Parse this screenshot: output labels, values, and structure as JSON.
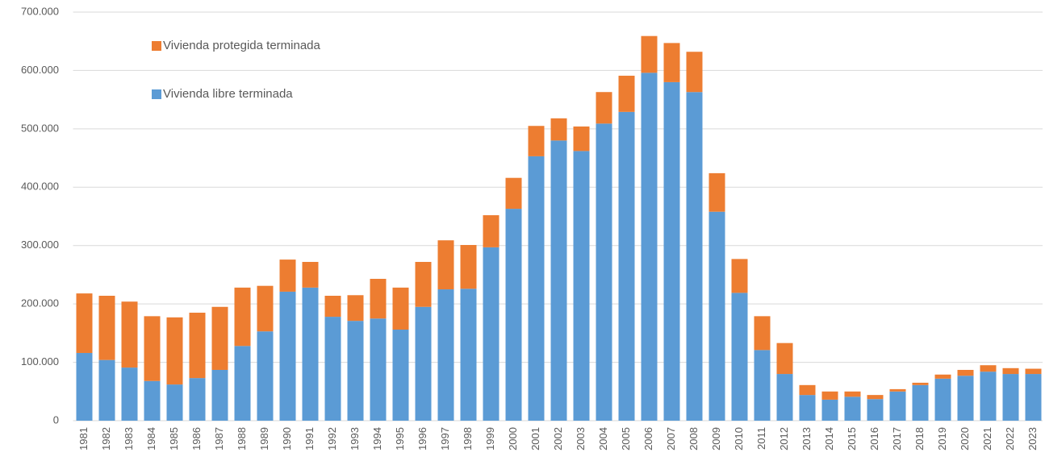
{
  "chart_data": {
    "type": "stacked_bar",
    "categories": [
      "1981",
      "1982",
      "1983",
      "1984",
      "1985",
      "1986",
      "1987",
      "1988",
      "1989",
      "1990",
      "1991",
      "1992",
      "1993",
      "1994",
      "1995",
      "1996",
      "1997",
      "1998",
      "1999",
      "2000",
      "2001",
      "2002",
      "2003",
      "2004",
      "2005",
      "2006",
      "2007",
      "2008",
      "2009",
      "2010",
      "2011",
      "2012",
      "2013",
      "2014",
      "2015",
      "2016",
      "2017",
      "2018",
      "2019",
      "2020",
      "2021",
      "2022",
      "2023"
    ],
    "series": [
      {
        "name": "Vivienda libre terminada",
        "color": "#5b9bd5",
        "values": [
          116000,
          104000,
          91000,
          68000,
          62000,
          73000,
          87000,
          128000,
          153000,
          221000,
          228000,
          178000,
          171000,
          175000,
          156000,
          195000,
          225000,
          226000,
          297000,
          363000,
          453000,
          480000,
          462000,
          509000,
          529000,
          596000,
          580000,
          563000,
          358000,
          219000,
          121000,
          80000,
          44000,
          36000,
          41000,
          37000,
          50000,
          61000,
          72000,
          77000,
          84000,
          80000,
          80000
        ]
      },
      {
        "name": "Vivienda protegida terminada",
        "color": "#ed7d31",
        "values": [
          102000,
          110000,
          113000,
          111000,
          115000,
          112000,
          108000,
          100000,
          78000,
          55000,
          44000,
          36000,
          44000,
          68000,
          72000,
          77000,
          84000,
          75000,
          55000,
          53000,
          52000,
          38000,
          42000,
          54000,
          62000,
          63000,
          67000,
          69000,
          66000,
          58000,
          58000,
          53000,
          17000,
          14000,
          9000,
          7000,
          4000,
          4000,
          7000,
          10000,
          11000,
          10000,
          9000
        ]
      }
    ],
    "ylim": [
      0,
      700000
    ],
    "yticks": [
      0,
      {
        "value": 100000,
        "label": "100.000"
      },
      {
        "value": 200000,
        "label": "200.000"
      },
      {
        "value": 300000,
        "label": "300.000"
      },
      {
        "value": 400000,
        "label": "400.000"
      },
      {
        "value": 500000,
        "label": "500.000"
      },
      {
        "value": 600000,
        "label": "600.000"
      },
      {
        "value": 700000,
        "label": "700.000"
      }
    ],
    "grid": true,
    "legend": "upper left"
  }
}
